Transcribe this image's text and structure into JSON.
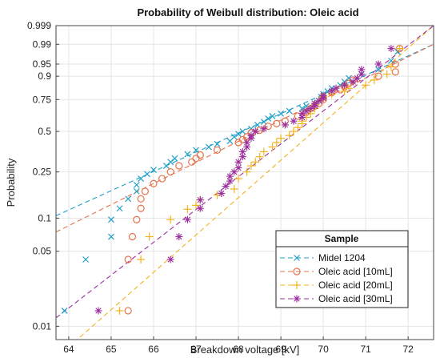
{
  "chart_data": {
    "type": "scatter",
    "title": "Probability of Weibull distribution: Oleic acid",
    "xlabel": "Breakdown voltage [kV]",
    "ylabel": "Probability",
    "xlim": [
      63.7,
      72.6
    ],
    "x_ticks": [
      "64",
      "65",
      "66",
      "67",
      "68",
      "69",
      "70",
      "71",
      "72"
    ],
    "y_scale": "weibull",
    "ylim": [
      0.0075,
      0.999
    ],
    "y_ticks": [
      "0.01",
      "0.05",
      "0.1",
      "0.25",
      "0.5",
      "0.75",
      "0.9",
      "0.95",
      "0.99",
      "0.999"
    ],
    "legend_title": "Sample",
    "legend_position": "bottom-right",
    "grid": true,
    "series": [
      {
        "name": "Midel 1204",
        "color": "#1f9fc9",
        "marker": "x",
        "fit": [
          [
            63.7,
            0.105
          ],
          [
            72.6,
            0.99
          ]
        ],
        "points": [
          [
            63.9,
            0.014
          ],
          [
            64.4,
            0.042
          ],
          [
            65.0,
            0.068
          ],
          [
            65.0,
            0.097
          ],
          [
            65.2,
            0.122
          ],
          [
            65.4,
            0.148
          ],
          [
            65.6,
            0.172
          ],
          [
            65.6,
            0.195
          ],
          [
            65.7,
            0.22
          ],
          [
            65.85,
            0.24
          ],
          [
            66.0,
            0.26
          ],
          [
            66.3,
            0.28
          ],
          [
            66.4,
            0.3
          ],
          [
            66.5,
            0.32
          ],
          [
            66.8,
            0.345
          ],
          [
            67.0,
            0.37
          ],
          [
            67.3,
            0.39
          ],
          [
            67.5,
            0.41
          ],
          [
            67.8,
            0.43
          ],
          [
            67.9,
            0.46
          ],
          [
            68.0,
            0.48
          ],
          [
            68.1,
            0.5
          ],
          [
            68.3,
            0.52
          ],
          [
            68.45,
            0.55
          ],
          [
            68.6,
            0.575
          ],
          [
            68.7,
            0.6
          ],
          [
            68.8,
            0.62
          ],
          [
            69.0,
            0.64
          ],
          [
            69.2,
            0.66
          ],
          [
            69.5,
            0.68
          ],
          [
            69.6,
            0.7
          ],
          [
            69.8,
            0.72
          ],
          [
            69.9,
            0.74
          ],
          [
            69.95,
            0.77
          ],
          [
            70.0,
            0.79
          ],
          [
            70.1,
            0.81
          ],
          [
            70.2,
            0.83
          ],
          [
            70.4,
            0.85
          ],
          [
            70.5,
            0.87
          ],
          [
            70.6,
            0.89
          ],
          [
            70.9,
            0.91
          ],
          [
            71.3,
            0.93
          ],
          [
            71.6,
            0.96
          ],
          [
            71.75,
            0.98
          ]
        ]
      },
      {
        "name": "Oleic acid [10mL]",
        "color": "#e8704a",
        "marker": "o",
        "fit": [
          [
            63.7,
            0.075
          ],
          [
            72.6,
            0.99
          ]
        ],
        "points": [
          [
            65.4,
            0.014
          ],
          [
            65.4,
            0.042
          ],
          [
            65.5,
            0.068
          ],
          [
            65.6,
            0.097
          ],
          [
            65.7,
            0.122
          ],
          [
            65.7,
            0.148
          ],
          [
            65.8,
            0.172
          ],
          [
            66.0,
            0.2
          ],
          [
            66.2,
            0.22
          ],
          [
            66.4,
            0.25
          ],
          [
            66.6,
            0.28
          ],
          [
            66.9,
            0.3
          ],
          [
            67.0,
            0.32
          ],
          [
            67.1,
            0.34
          ],
          [
            67.5,
            0.37
          ],
          [
            68.0,
            0.42
          ],
          [
            68.1,
            0.44
          ],
          [
            68.2,
            0.46
          ],
          [
            68.3,
            0.49
          ],
          [
            68.5,
            0.51
          ],
          [
            68.7,
            0.54
          ],
          [
            68.9,
            0.56
          ],
          [
            69.1,
            0.58
          ],
          [
            69.4,
            0.62
          ],
          [
            69.6,
            0.65
          ],
          [
            69.7,
            0.68
          ],
          [
            69.8,
            0.7
          ],
          [
            69.9,
            0.72
          ],
          [
            70.0,
            0.75
          ],
          [
            70.0,
            0.77
          ],
          [
            70.2,
            0.8
          ],
          [
            70.4,
            0.82
          ],
          [
            70.5,
            0.84
          ],
          [
            70.6,
            0.86
          ],
          [
            70.7,
            0.88
          ],
          [
            71.3,
            0.9
          ],
          [
            71.7,
            0.92
          ],
          [
            71.7,
            0.95
          ],
          [
            71.8,
            0.985
          ]
        ]
      },
      {
        "name": "Oleic acid [20mL]",
        "color": "#f2b31d",
        "marker": "+",
        "fit": [
          [
            63.7,
            0.005
          ],
          [
            72.6,
            0.999
          ]
        ],
        "points": [
          [
            65.2,
            0.014
          ],
          [
            65.7,
            0.042
          ],
          [
            65.9,
            0.068
          ],
          [
            66.4,
            0.097
          ],
          [
            66.8,
            0.12
          ],
          [
            67.0,
            0.13
          ],
          [
            67.1,
            0.145
          ],
          [
            67.5,
            0.16
          ],
          [
            67.9,
            0.18
          ],
          [
            68.0,
            0.22
          ],
          [
            68.2,
            0.25
          ],
          [
            68.3,
            0.28
          ],
          [
            68.4,
            0.3
          ],
          [
            68.5,
            0.33
          ],
          [
            68.6,
            0.36
          ],
          [
            68.8,
            0.39
          ],
          [
            68.9,
            0.42
          ],
          [
            69.0,
            0.45
          ],
          [
            69.2,
            0.47
          ],
          [
            69.3,
            0.5
          ],
          [
            69.4,
            0.53
          ],
          [
            69.5,
            0.56
          ],
          [
            69.5,
            0.58
          ],
          [
            69.6,
            0.61
          ],
          [
            69.7,
            0.64
          ],
          [
            69.7,
            0.66
          ],
          [
            69.8,
            0.68
          ],
          [
            69.8,
            0.71
          ],
          [
            69.9,
            0.74
          ],
          [
            70.0,
            0.77
          ],
          [
            70.2,
            0.79
          ],
          [
            70.5,
            0.81
          ],
          [
            70.6,
            0.83
          ],
          [
            71.0,
            0.85
          ],
          [
            71.2,
            0.88
          ],
          [
            71.5,
            0.91
          ],
          [
            71.6,
            0.94
          ],
          [
            71.8,
            0.985
          ]
        ]
      },
      {
        "name": "Oleic acid [30mL]",
        "color": "#9b2d9e",
        "marker": "*",
        "fit": [
          [
            63.7,
            0.012
          ],
          [
            72.6,
            0.999
          ]
        ],
        "points": [
          [
            64.7,
            0.014
          ],
          [
            66.4,
            0.042
          ],
          [
            66.6,
            0.068
          ],
          [
            66.8,
            0.097
          ],
          [
            67.1,
            0.122
          ],
          [
            67.1,
            0.145
          ],
          [
            67.6,
            0.165
          ],
          [
            67.7,
            0.19
          ],
          [
            67.8,
            0.21
          ],
          [
            67.8,
            0.23
          ],
          [
            67.9,
            0.25
          ],
          [
            68.0,
            0.27
          ],
          [
            68.0,
            0.3
          ],
          [
            68.1,
            0.33
          ],
          [
            68.1,
            0.36
          ],
          [
            68.2,
            0.39
          ],
          [
            68.2,
            0.42
          ],
          [
            68.3,
            0.45
          ],
          [
            68.3,
            0.47
          ],
          [
            68.4,
            0.5
          ],
          [
            68.6,
            0.52
          ],
          [
            69.1,
            0.55
          ],
          [
            69.3,
            0.58
          ],
          [
            69.5,
            0.61
          ],
          [
            69.5,
            0.64
          ],
          [
            69.6,
            0.66
          ],
          [
            69.7,
            0.68
          ],
          [
            69.8,
            0.7
          ],
          [
            69.8,
            0.72
          ],
          [
            69.9,
            0.74
          ],
          [
            70.0,
            0.76
          ],
          [
            70.0,
            0.78
          ],
          [
            70.2,
            0.81
          ],
          [
            70.3,
            0.83
          ],
          [
            70.5,
            0.85
          ],
          [
            70.7,
            0.87
          ],
          [
            70.8,
            0.89
          ],
          [
            70.9,
            0.91
          ],
          [
            70.9,
            0.93
          ],
          [
            71.3,
            0.95
          ],
          [
            71.6,
            0.985
          ]
        ]
      }
    ]
  }
}
